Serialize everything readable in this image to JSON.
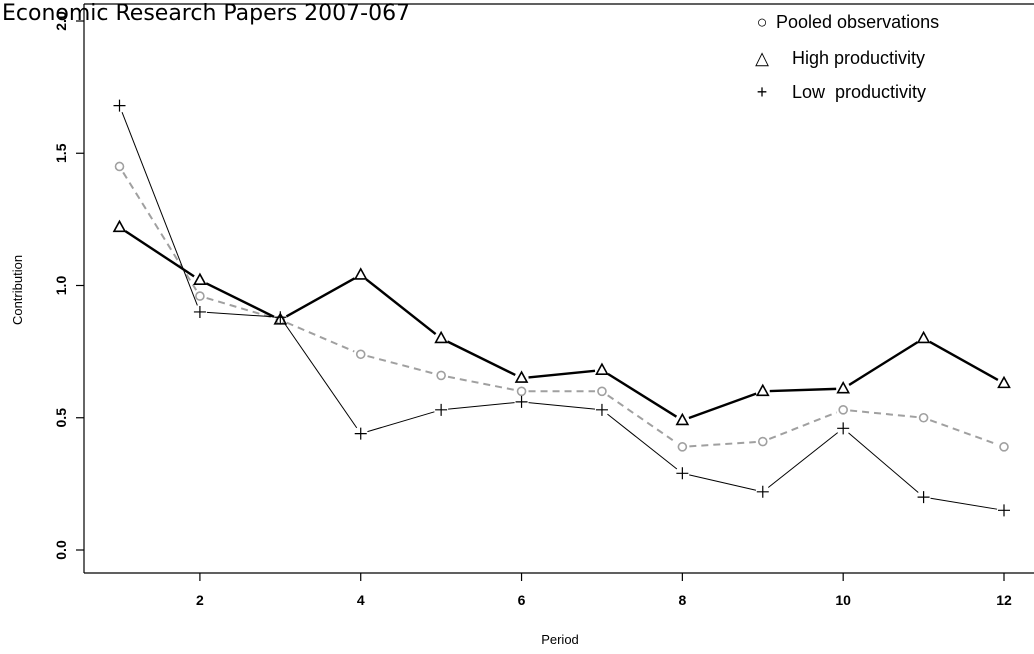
{
  "header": {
    "title": "Economic Research Papers 2007-067"
  },
  "chart_data": {
    "type": "line",
    "xlabel": "Period",
    "ylabel": "Contribution",
    "xlim": [
      0.6,
      12.45
    ],
    "ylim": [
      -0.1,
      2.0
    ],
    "x_ticks": [
      "2",
      "4",
      "6",
      "8",
      "10",
      "12"
    ],
    "y_ticks": [
      "0.0",
      "0.5",
      "1.0",
      "1.5",
      "2.0"
    ],
    "grid": false,
    "legend_position": "top-right",
    "x": [
      1,
      2,
      3,
      4,
      5,
      6,
      7,
      8,
      9,
      10,
      11,
      12
    ],
    "series": [
      {
        "name": "Pooled observations",
        "marker": "circle",
        "line_style": "dashed",
        "color": "#a0a0a0",
        "values": [
          1.45,
          0.96,
          0.87,
          0.74,
          0.66,
          0.6,
          0.6,
          0.39,
          0.41,
          0.53,
          0.5,
          0.39
        ]
      },
      {
        "name": "High productivity",
        "marker": "triangle",
        "line_style": "solid-thick",
        "color": "#000000",
        "values": [
          1.22,
          1.02,
          0.87,
          1.04,
          0.8,
          0.65,
          0.68,
          0.49,
          0.6,
          0.61,
          0.8,
          0.63
        ]
      },
      {
        "name": "Low productivity",
        "marker": "plus",
        "line_style": "solid-thin",
        "color": "#000000",
        "values": [
          1.68,
          0.9,
          0.88,
          0.44,
          0.53,
          0.56,
          0.53,
          0.29,
          0.22,
          0.46,
          0.2,
          0.15
        ]
      }
    ],
    "legend": {
      "entries": [
        {
          "symbol": "○",
          "label": "Pooled observations"
        },
        {
          "symbol": "△",
          "label": "High productivity"
        },
        {
          "symbol": "+",
          "label": "Low  productivity"
        }
      ]
    }
  }
}
